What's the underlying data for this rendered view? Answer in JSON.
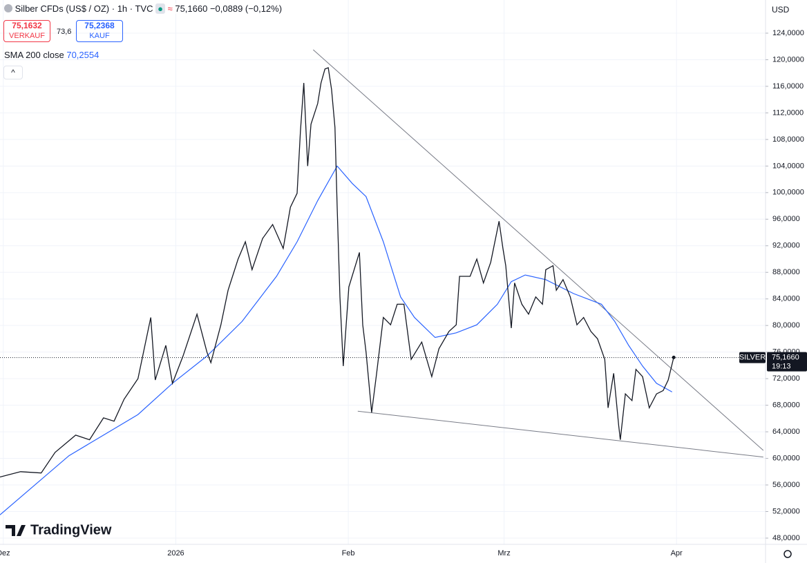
{
  "chart_data": {
    "type": "line",
    "title": "Silber CFDs (US$ / OZ) · 1h · TVC",
    "change": "−0,0889 (−0,12%)",
    "sell_price": "75,1632",
    "sell_label": "VERKAUF",
    "spread": "73,6",
    "buy_price": "75,2368",
    "buy_label": "KAUF",
    "sma_value": "70,2554",
    "currency": "USD",
    "logo": "TradingView",
    "countdown": "19:13",
    "last_price": {
      "value": 75.166,
      "label": "75,1660"
    },
    "xlim": [
      -0.6,
      137
    ],
    "ylim": [
      47.06,
      128.99
    ],
    "xticks": [
      {
        "value": 0,
        "label": "Dez"
      },
      {
        "value": 31,
        "label": "2026"
      },
      {
        "value": 62,
        "label": "Feb"
      },
      {
        "value": 90,
        "label": "Mrz"
      },
      {
        "value": 121,
        "label": "Apr"
      }
    ],
    "yticks": [
      {
        "value": 48,
        "label": "48,0000"
      },
      {
        "value": 52,
        "label": "52,0000"
      },
      {
        "value": 56,
        "label": "56,0000"
      },
      {
        "value": 60,
        "label": "60,0000"
      },
      {
        "value": 64,
        "label": "64,0000"
      },
      {
        "value": 68,
        "label": "68,0000"
      },
      {
        "value": 72,
        "label": "72,0000"
      },
      {
        "value": 76,
        "label": "76,0000"
      },
      {
        "value": 80,
        "label": "80,0000"
      },
      {
        "value": 84,
        "label": "84,0000"
      },
      {
        "value": 88,
        "label": "88,0000"
      },
      {
        "value": 92,
        "label": "92,0000"
      },
      {
        "value": 96,
        "label": "96,0000"
      },
      {
        "value": 100,
        "label": "100,0000"
      },
      {
        "value": 104,
        "label": "104,0000"
      },
      {
        "value": 108,
        "label": "108,0000"
      },
      {
        "value": 112,
        "label": "112,0000"
      },
      {
        "value": 116,
        "label": "116,0000"
      },
      {
        "value": 120,
        "label": "120,0000"
      },
      {
        "value": 124,
        "label": "124,0000"
      }
    ],
    "grid": true,
    "series": [
      {
        "name": "SILVER",
        "color": "#131722",
        "x": [
          -0.6,
          3.1,
          6.8,
          9.3,
          13.0,
          15.5,
          18.0,
          19.9,
          21.7,
          24.2,
          26.5,
          27.3,
          29.2,
          30.4,
          32.3,
          34.8,
          36.6,
          37.3,
          39.1,
          40.4,
          42.2,
          43.5,
          44.7,
          46.6,
          48.4,
          50.3,
          51.6,
          52.8,
          53.4,
          54.0,
          54.7,
          55.3,
          56.5,
          57.1,
          57.8,
          58.4,
          59.0,
          59.6,
          60.0,
          60.5,
          61.1,
          62.1,
          64.0,
          64.6,
          65.2,
          66.2,
          67.1,
          68.3,
          69.6,
          70.8,
          72.0,
          73.3,
          75.2,
          77.0,
          78.3,
          80.1,
          81.4,
          82.0,
          83.9,
          85.1,
          86.3,
          87.6,
          89.1,
          89.8,
          90.3,
          91.3,
          91.9,
          93.2,
          94.4,
          95.7,
          96.9,
          97.5,
          98.8,
          99.4,
          100.6,
          101.9,
          103.1,
          104.3,
          105.6,
          106.8,
          108.1,
          108.7,
          109.7,
          110.6,
          110.9,
          111.8,
          113.0,
          113.7,
          114.9,
          116.1,
          117.4,
          118.6,
          119.5,
          120.5
        ],
        "values": [
          57.2,
          58.0,
          57.8,
          60.9,
          63.5,
          62.8,
          66.1,
          65.6,
          68.9,
          72.0,
          81.2,
          71.8,
          77.0,
          71.3,
          75.4,
          81.7,
          76.0,
          74.4,
          80.1,
          85.3,
          90.0,
          92.6,
          88.4,
          93.1,
          95.2,
          91.6,
          97.8,
          99.9,
          109.2,
          116.5,
          104.0,
          110.3,
          113.4,
          116.5,
          118.6,
          118.8,
          115.5,
          109.8,
          97.8,
          84.3,
          73.9,
          85.8,
          91.0,
          80.1,
          76.0,
          66.9,
          72.8,
          81.2,
          80.1,
          83.2,
          83.2,
          74.9,
          77.5,
          72.3,
          76.5,
          79.1,
          80.1,
          87.4,
          87.4,
          90.0,
          86.4,
          89.5,
          95.7,
          91.6,
          89.0,
          79.6,
          86.4,
          83.2,
          81.7,
          84.3,
          83.2,
          88.4,
          89.0,
          85.3,
          86.9,
          84.3,
          80.1,
          81.2,
          79.1,
          78.0,
          74.9,
          67.6,
          72.8,
          65.0,
          62.8,
          69.7,
          68.7,
          73.4,
          72.3,
          67.6,
          69.7,
          70.2,
          71.8,
          75.2
        ]
      },
      {
        "name": "SMA 200 close",
        "color": "#2962ff",
        "x": [
          -0.6,
          11.8,
          24.2,
          30.4,
          36.6,
          42.9,
          49.1,
          52.8,
          56.5,
          60.0,
          62.7,
          65.2,
          68.3,
          71.4,
          73.9,
          77.6,
          81.4,
          85.1,
          88.8,
          91.3,
          93.8,
          97.5,
          102.5,
          107.5,
          109.9,
          112.4,
          114.9,
          117.4,
          120.2
        ],
        "values": [
          51.5,
          60.4,
          66.6,
          71.3,
          75.4,
          80.6,
          87.4,
          92.6,
          98.8,
          104.0,
          101.4,
          99.4,
          92.6,
          84.3,
          81.2,
          78.2,
          78.9,
          80.1,
          83.2,
          86.6,
          87.6,
          86.9,
          84.8,
          83.2,
          80.6,
          77.0,
          73.9,
          71.3,
          70.0
        ]
      }
    ],
    "trendlines": [
      {
        "color": "#787b86",
        "x": [
          55.7,
          136.6
        ],
        "values": [
          121.5,
          61.2
        ]
      },
      {
        "color": "#787b86",
        "x": [
          63.7,
          136.6
        ],
        "values": [
          67.1,
          60.2
        ]
      }
    ]
  }
}
